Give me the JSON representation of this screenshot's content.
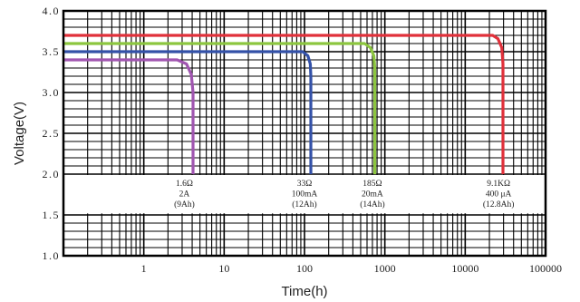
{
  "chart_data": {
    "type": "line",
    "title": "",
    "xlabel": "Time(h)",
    "ylabel": "Voltage(V)",
    "x_scale": "log",
    "xlim": [
      0.1,
      100000
    ],
    "ylim": [
      1.0,
      4.0
    ],
    "grid": true,
    "x_ticks": [
      "1",
      "10",
      "100",
      "1000",
      "10000",
      "100000"
    ],
    "x_tick_values": [
      1,
      10,
      100,
      1000,
      10000,
      100000
    ],
    "y_ticks": [
      "1.0",
      "1.5",
      "2.0",
      "2.5",
      "3.0",
      "3.5",
      "4.0"
    ],
    "y_tick_values": [
      1.0,
      1.5,
      2.0,
      2.5,
      3.0,
      3.5,
      4.0
    ],
    "series": [
      {
        "color": "#e0303a",
        "points": [
          [
            0.1,
            3.7
          ],
          [
            22000,
            3.7
          ],
          [
            25500,
            3.66
          ],
          [
            28500,
            3.55
          ],
          [
            29500,
            3.35
          ],
          [
            29500,
            2.0
          ]
        ],
        "annotation": [
          "9.1KΩ",
          "400 μA",
          "(12.8Ah)"
        ],
        "annotation_x": 26000
      },
      {
        "color": "#8cc63f",
        "points": [
          [
            0.1,
            3.6
          ],
          [
            560,
            3.6
          ],
          [
            660,
            3.55
          ],
          [
            730,
            3.45
          ],
          [
            750,
            3.3
          ],
          [
            750,
            2.0
          ]
        ],
        "annotation": [
          "185Ω",
          "20mA",
          "(14Ah)"
        ],
        "annotation_x": 700
      },
      {
        "color": "#3351a8",
        "points": [
          [
            0.1,
            3.5
          ],
          [
            95,
            3.5
          ],
          [
            110,
            3.45
          ],
          [
            118,
            3.35
          ],
          [
            120,
            3.2
          ],
          [
            120,
            2.0
          ]
        ],
        "annotation": [
          "33Ω",
          "100mA",
          "(12Ah)"
        ],
        "annotation_x": 100
      },
      {
        "color": "#a055b0",
        "points": [
          [
            0.1,
            3.4
          ],
          [
            2.6,
            3.4
          ],
          [
            3.4,
            3.35
          ],
          [
            3.9,
            3.22
          ],
          [
            4.1,
            3.0
          ],
          [
            4.1,
            2.0
          ]
        ],
        "annotation": [
          "1.6Ω",
          "2A",
          "(9Ah)"
        ],
        "annotation_x": 3.2
      }
    ]
  }
}
